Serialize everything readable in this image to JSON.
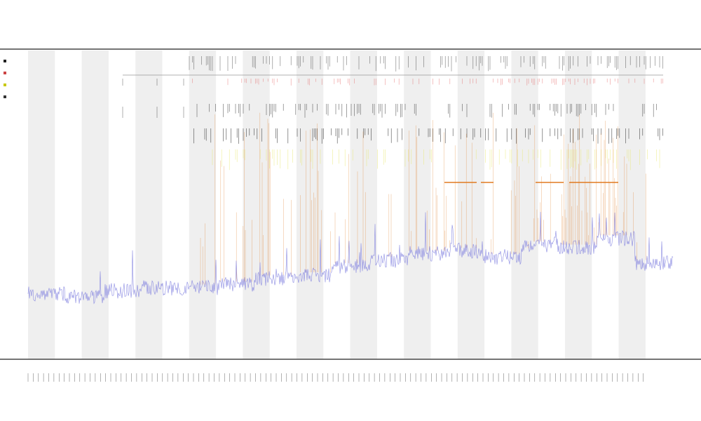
{
  "chart_data": {
    "type": "line",
    "title": "",
    "subtitle_lines": [],
    "xlabel": "",
    "ylabel": "",
    "grid": false,
    "legend_position": "left",
    "legend_entries": [
      {
        "name": "",
        "color": "#222222"
      },
      {
        "name": "",
        "color": "#cc4444"
      },
      {
        "name": "",
        "color": "#c8c800"
      },
      {
        "name": "",
        "color": "#333333"
      }
    ],
    "colors": {
      "baseline_signal": "#7777dd",
      "event_signal": "#e07a20",
      "highlight_track": "#e8e86a",
      "red_track": "#e05555",
      "dark_tracks": "#222222",
      "band_shade": "#efefef",
      "axis": "#222222"
    },
    "shaded_bands": 12,
    "signal_baseline_levels": [
      {
        "segment": 1,
        "level": 0.2
      },
      {
        "segment": 2,
        "level": 0.19
      },
      {
        "segment": 3,
        "level": 0.21
      },
      {
        "segment": 4,
        "level": 0.22
      },
      {
        "segment": 5,
        "level": 0.22
      },
      {
        "segment": 6,
        "level": 0.23
      },
      {
        "segment": 7,
        "level": 0.25
      },
      {
        "segment": 8,
        "level": 0.26
      },
      {
        "segment": 9,
        "level": 0.29
      },
      {
        "segment": 10,
        "level": 0.31
      },
      {
        "segment": 11,
        "level": 0.33
      },
      {
        "segment": 12,
        "level": 0.34
      },
      {
        "segment": 13,
        "level": 0.32
      },
      {
        "segment": 14,
        "level": 0.36
      },
      {
        "segment": 15,
        "level": 0.35
      },
      {
        "segment": 16,
        "level": 0.38
      },
      {
        "segment": 17,
        "level": 0.3
      }
    ],
    "x_tick_count": 120,
    "y_range": [
      0,
      1
    ]
  }
}
